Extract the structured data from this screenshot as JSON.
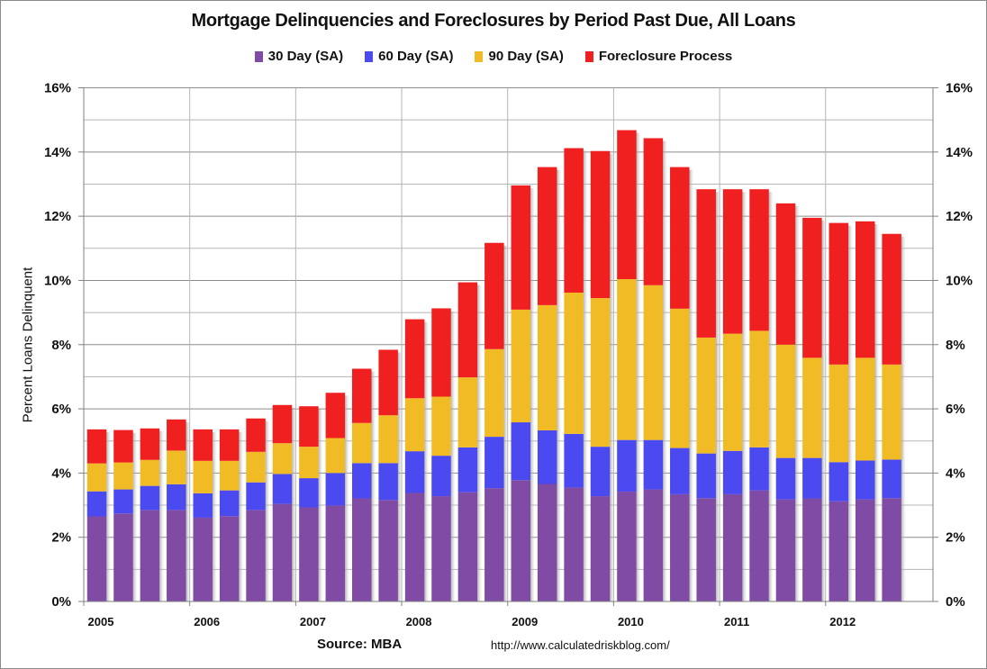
{
  "chart_data": {
    "type": "bar",
    "stacked": true,
    "title": "Mortgage Delinquencies and Foreclosures by Period Past Due, All Loans",
    "xlabel": "",
    "ylabel": "Percent Loans Delinquent",
    "ylim": [
      0,
      16
    ],
    "y_ticks": [
      "0%",
      "2%",
      "4%",
      "6%",
      "8%",
      "10%",
      "12%",
      "14%",
      "16%"
    ],
    "y_ticks_right": [
      "0%",
      "2%",
      "4%",
      "6%",
      "8%",
      "10%",
      "12%",
      "14%",
      "16%"
    ],
    "x_tick_labels": [
      "2005",
      "2006",
      "2007",
      "2008",
      "2009",
      "2010",
      "2011",
      "2012"
    ],
    "grid": true,
    "legend_position": "top",
    "categories": [
      "2005Q1",
      "2005Q2",
      "2005Q3",
      "2005Q4",
      "2006Q1",
      "2006Q2",
      "2006Q3",
      "2006Q4",
      "2007Q1",
      "2007Q2",
      "2007Q3",
      "2007Q4",
      "2008Q1",
      "2008Q2",
      "2008Q3",
      "2008Q4",
      "2009Q1",
      "2009Q2",
      "2009Q3",
      "2009Q4",
      "2010Q1",
      "2010Q2",
      "2010Q3",
      "2010Q4",
      "2011Q1",
      "2011Q2",
      "2011Q3",
      "2011Q4",
      "2012Q1",
      "2012Q2",
      "2012Q3"
    ],
    "series": [
      {
        "name": "30 Day (SA)",
        "color": "#7f4ba5",
        "values": [
          2.65,
          2.74,
          2.85,
          2.85,
          2.61,
          2.66,
          2.85,
          3.04,
          2.93,
          2.99,
          3.21,
          3.16,
          3.38,
          3.28,
          3.4,
          3.53,
          3.78,
          3.66,
          3.55,
          3.28,
          3.42,
          3.49,
          3.34,
          3.22,
          3.34,
          3.46,
          3.18,
          3.21,
          3.12,
          3.18,
          3.22
        ]
      },
      {
        "name": "60 Day (SA)",
        "color": "#4a4af0",
        "values": [
          0.78,
          0.75,
          0.75,
          0.8,
          0.76,
          0.8,
          0.86,
          0.93,
          0.91,
          1.01,
          1.1,
          1.15,
          1.3,
          1.26,
          1.4,
          1.6,
          1.8,
          1.67,
          1.67,
          1.54,
          1.61,
          1.54,
          1.44,
          1.39,
          1.35,
          1.34,
          1.29,
          1.26,
          1.22,
          1.21,
          1.2
        ]
      },
      {
        "name": "90 Day (SA)",
        "color": "#f0bb25",
        "values": [
          0.87,
          0.84,
          0.81,
          1.05,
          1.01,
          0.92,
          0.95,
          0.96,
          0.98,
          1.09,
          1.25,
          1.49,
          1.65,
          1.84,
          2.18,
          2.73,
          3.51,
          3.9,
          4.4,
          4.63,
          5.01,
          4.82,
          4.34,
          3.61,
          3.65,
          3.63,
          3.53,
          3.12,
          3.04,
          3.2,
          2.96
        ]
      },
      {
        "name": "Foreclosure Process",
        "color": "#f02020",
        "values": [
          1.06,
          1.01,
          0.98,
          0.97,
          0.98,
          0.98,
          1.04,
          1.19,
          1.26,
          1.41,
          1.69,
          2.04,
          2.46,
          2.75,
          2.96,
          3.31,
          3.87,
          4.3,
          4.5,
          4.58,
          4.64,
          4.58,
          4.41,
          4.62,
          4.5,
          4.41,
          4.4,
          4.36,
          4.41,
          4.25,
          4.07
        ]
      }
    ],
    "annotations": [
      "Source: MBA",
      "http://www.calculatedriskblog.com/"
    ]
  },
  "header": {
    "title": "Mortgage Delinquencies and Foreclosures by Period Past Due, All Loans"
  },
  "legend": {
    "items": [
      {
        "label": "30 Day (SA)",
        "color": "#7f4ba5"
      },
      {
        "label": "60 Day (SA)",
        "color": "#4a4af0"
      },
      {
        "label": "90 Day (SA)",
        "color": "#f0bb25"
      },
      {
        "label": "Foreclosure Process",
        "color": "#f02020"
      }
    ]
  },
  "axes": {
    "ylabel": "Percent Loans Delinquent"
  },
  "footer": {
    "source": "Source: MBA",
    "url": "http://www.calculatedriskblog.com/"
  }
}
